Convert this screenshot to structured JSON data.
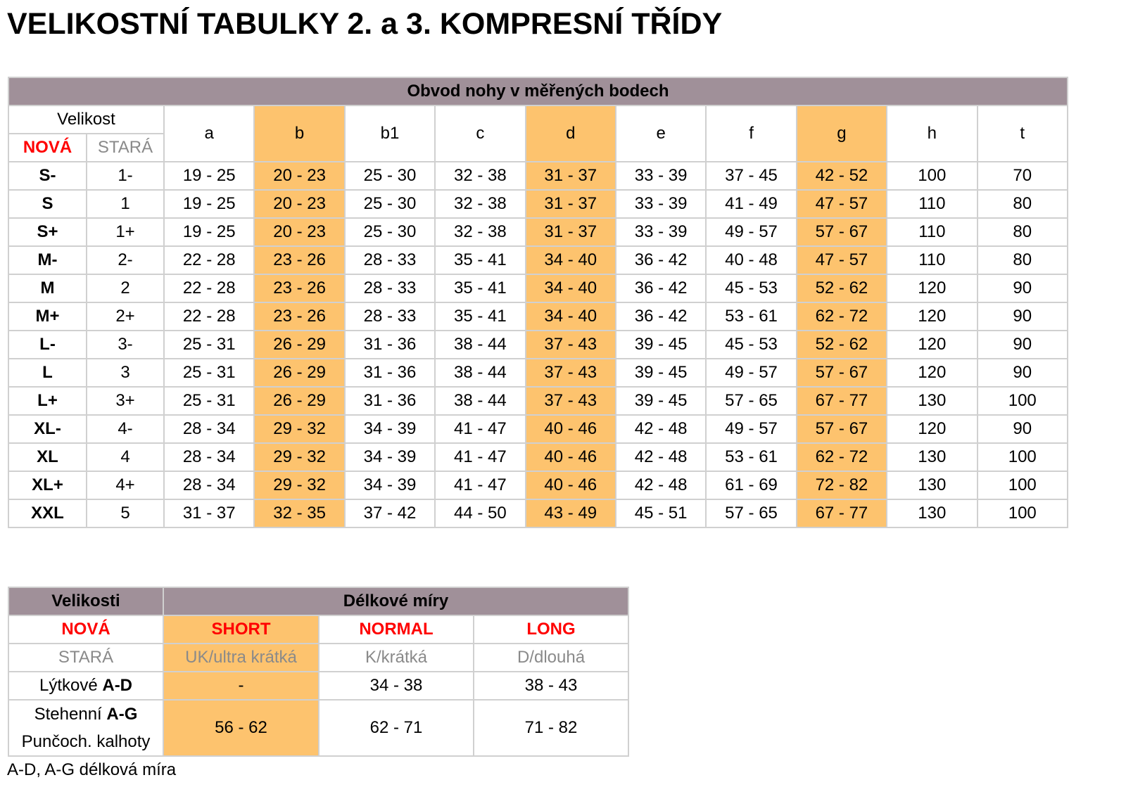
{
  "title": "VELIKOSTNÍ TABULKY 2. a 3. KOMPRESNÍ TŘÍDY",
  "colors": {
    "header_bg": "#a09099",
    "highlight": "#fdc36e",
    "new_label": "#ff0000",
    "old_label": "#8a8a8a"
  },
  "circumference_table": {
    "caption": "Obvod nohy v měřených bodech",
    "size_label": "Velikost",
    "new_label": "NOVÁ",
    "old_label": "STARÁ",
    "columns": [
      "a",
      "b",
      "b1",
      "c",
      "d",
      "e",
      "f",
      "g",
      "h",
      "t"
    ],
    "highlighted_columns": [
      "b",
      "d",
      "g"
    ],
    "rows": [
      {
        "new": "S-",
        "old": "1-",
        "values": [
          "19 - 25",
          "20 - 23",
          "25 - 30",
          "32 - 38",
          "31 - 37",
          "33 - 39",
          "37 - 45",
          "42 - 52",
          "100",
          "70"
        ]
      },
      {
        "new": "S",
        "old": "1",
        "values": [
          "19 - 25",
          "20 - 23",
          "25 - 30",
          "32 - 38",
          "31 - 37",
          "33 - 39",
          "41 - 49",
          "47 - 57",
          "110",
          "80"
        ]
      },
      {
        "new": "S+",
        "old": "1+",
        "values": [
          "19 - 25",
          "20 - 23",
          "25 - 30",
          "32 - 38",
          "31 - 37",
          "33 - 39",
          "49 - 57",
          "57 - 67",
          "110",
          "80"
        ]
      },
      {
        "new": "M-",
        "old": "2-",
        "values": [
          "22 - 28",
          "23 - 26",
          "28 - 33",
          "35 - 41",
          "34 - 40",
          "36 - 42",
          "40 - 48",
          "47 - 57",
          "110",
          "80"
        ]
      },
      {
        "new": "M",
        "old": "2",
        "values": [
          "22 - 28",
          "23 - 26",
          "28 - 33",
          "35 - 41",
          "34 - 40",
          "36 - 42",
          "45 - 53",
          "52 - 62",
          "120",
          "90"
        ]
      },
      {
        "new": "M+",
        "old": "2+",
        "values": [
          "22 - 28",
          "23 - 26",
          "28 - 33",
          "35 - 41",
          "34 - 40",
          "36 - 42",
          "53 - 61",
          "62 - 72",
          "120",
          "90"
        ]
      },
      {
        "new": "L-",
        "old": "3-",
        "values": [
          "25 - 31",
          "26 - 29",
          "31 - 36",
          "38 - 44",
          "37 - 43",
          "39 - 45",
          "45 - 53",
          "52 - 62",
          "120",
          "90"
        ]
      },
      {
        "new": "L",
        "old": "3",
        "values": [
          "25 - 31",
          "26 - 29",
          "31 - 36",
          "38 - 44",
          "37 - 43",
          "39 - 45",
          "49 - 57",
          "57 - 67",
          "120",
          "90"
        ]
      },
      {
        "new": "L+",
        "old": "3+",
        "values": [
          "25 - 31",
          "26 - 29",
          "31 - 36",
          "38 - 44",
          "37 - 43",
          "39 - 45",
          "57 - 65",
          "67 - 77",
          "130",
          "100"
        ]
      },
      {
        "new": "XL-",
        "old": "4-",
        "values": [
          "28 - 34",
          "29 - 32",
          "34 - 39",
          "41 - 47",
          "40 - 46",
          "42 - 48",
          "49 - 57",
          "57 - 67",
          "120",
          "90"
        ]
      },
      {
        "new": "XL",
        "old": "4",
        "values": [
          "28 - 34",
          "29 - 32",
          "34 - 39",
          "41 - 47",
          "40 - 46",
          "42 - 48",
          "53 - 61",
          "62 - 72",
          "130",
          "100"
        ]
      },
      {
        "new": "XL+",
        "old": "4+",
        "values": [
          "28 - 34",
          "29 - 32",
          "34 - 39",
          "41 - 47",
          "40 - 46",
          "42 - 48",
          "61 - 69",
          "72 - 82",
          "130",
          "100"
        ]
      },
      {
        "new": "XXL",
        "old": "5",
        "values": [
          "31 - 37",
          "32 - 35",
          "37 - 42",
          "44 - 50",
          "43 - 49",
          "45 - 51",
          "57 - 65",
          "67 - 77",
          "130",
          "100"
        ]
      }
    ]
  },
  "length_table": {
    "sizes_label": "Velikosti",
    "caption": "Délkové míry",
    "new_label": "NOVÁ",
    "old_label": "STARÁ",
    "new_sizes": [
      "SHORT",
      "NORMAL",
      "LONG"
    ],
    "old_sizes": [
      "UK/ultra krátká",
      "K/krátká",
      "D/dlouhá"
    ],
    "calf": {
      "label": "Lýtkové ",
      "label_bold": "A-D",
      "values": [
        "-",
        "34 - 38",
        "38 - 43"
      ]
    },
    "thigh": {
      "label": "Stehenní ",
      "label_bold": "A-G",
      "label2": "Punčoch. kalhoty",
      "values": [
        "56 - 62",
        "62 - 71",
        "71 - 82"
      ]
    }
  },
  "footnote": "A-D, A-G délková míra"
}
